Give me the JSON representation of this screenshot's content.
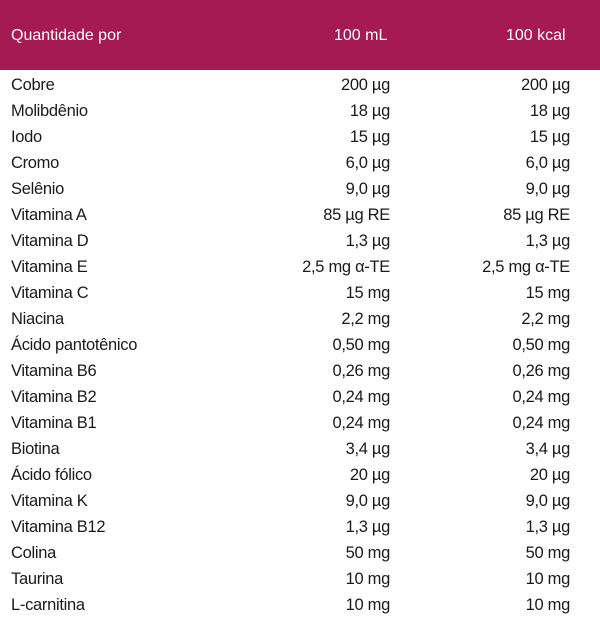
{
  "header": {
    "label": "Quantidade por",
    "col1": "100 mL",
    "col2": "100 kcal"
  },
  "rows": [
    {
      "name": "Cobre",
      "per_100ml": "200 µg",
      "per_100kcal": "200 µg"
    },
    {
      "name": "Molibdênio",
      "per_100ml": "18 µg",
      "per_100kcal": "18 µg"
    },
    {
      "name": "Iodo",
      "per_100ml": "15 µg",
      "per_100kcal": "15 µg"
    },
    {
      "name": "Cromo",
      "per_100ml": "6,0 µg",
      "per_100kcal": "6,0 µg"
    },
    {
      "name": "Selênio",
      "per_100ml": "9,0 µg",
      "per_100kcal": "9,0 µg"
    },
    {
      "name": "Vitamina A",
      "per_100ml": "85 µg RE",
      "per_100kcal": "85 µg RE"
    },
    {
      "name": "Vitamina D",
      "per_100ml": "1,3 µg",
      "per_100kcal": "1,3 µg"
    },
    {
      "name": "Vitamina E",
      "per_100ml": "2,5 mg  α-TE",
      "per_100kcal": "2,5 mg  α-TE"
    },
    {
      "name": "Vitamina C",
      "per_100ml": "15 mg",
      "per_100kcal": "15 mg"
    },
    {
      "name": "Niacina",
      "per_100ml": "2,2 mg",
      "per_100kcal": "2,2 mg"
    },
    {
      "name": "Ácido pantotênico",
      "per_100ml": "0,50 mg",
      "per_100kcal": "0,50 mg"
    },
    {
      "name": "Vitamina B6",
      "per_100ml": "0,26 mg",
      "per_100kcal": "0,26 mg"
    },
    {
      "name": "Vitamina B2",
      "per_100ml": "0,24 mg",
      "per_100kcal": "0,24 mg"
    },
    {
      "name": "Vitamina B1",
      "per_100ml": "0,24 mg",
      "per_100kcal": "0,24 mg"
    },
    {
      "name": "Biotina",
      "per_100ml": "3,4 µg",
      "per_100kcal": "3,4 µg"
    },
    {
      "name": "Ácido fólico",
      "per_100ml": "20 µg",
      "per_100kcal": "20 µg"
    },
    {
      "name": "Vitamina K",
      "per_100ml": "9,0 µg",
      "per_100kcal": "9,0 µg"
    },
    {
      "name": "Vitamina B12",
      "per_100ml": "1,3 µg",
      "per_100kcal": "1,3 µg"
    },
    {
      "name": "Colina",
      "per_100ml": "50 mg",
      "per_100kcal": "50 mg"
    },
    {
      "name": "Taurina",
      "per_100ml": "10 mg",
      "per_100kcal": "10 mg"
    },
    {
      "name": "L-carnitina",
      "per_100ml": "10 mg",
      "per_100kcal": "10 mg"
    }
  ],
  "colors": {
    "header_bg": "#a61a54",
    "header_text": "#ffffff",
    "body_text": "#1a1a1a"
  }
}
